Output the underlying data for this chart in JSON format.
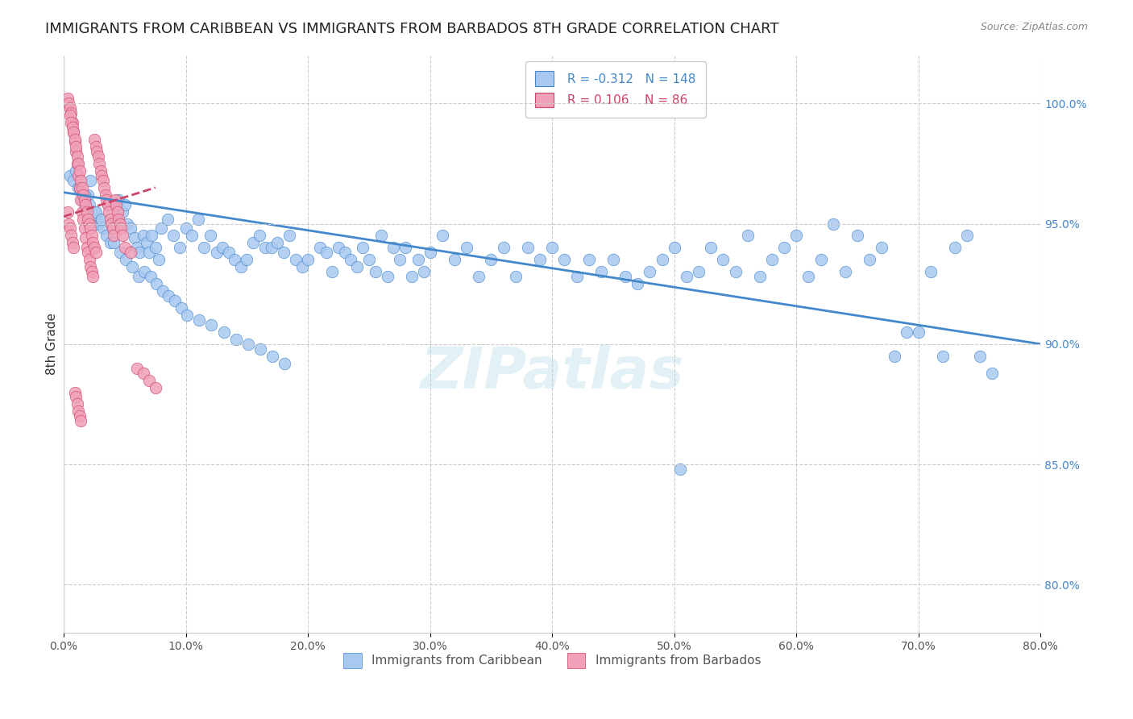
{
  "title": "IMMIGRANTS FROM CARIBBEAN VS IMMIGRANTS FROM BARBADOS 8TH GRADE CORRELATION CHART",
  "source": "Source: ZipAtlas.com",
  "ylabel": "8th Grade",
  "right_ytick_labels": [
    "100.0%",
    "95.0%",
    "90.0%",
    "85.0%",
    "80.0%"
  ],
  "right_ytick_vals": [
    1.0,
    0.95,
    0.9,
    0.85,
    0.8
  ],
  "xlim": [
    0.0,
    0.8
  ],
  "ylim": [
    0.78,
    1.02
  ],
  "xticklabels": [
    "0.0%",
    "10.0%",
    "20.0%",
    "30.0%",
    "40.0%",
    "50.0%",
    "60.0%",
    "70.0%",
    "80.0%"
  ],
  "xtick_vals": [
    0.0,
    0.1,
    0.2,
    0.3,
    0.4,
    0.5,
    0.6,
    0.7,
    0.8
  ],
  "legend_R1": "-0.312",
  "legend_N1": "148",
  "legend_R2": "0.106",
  "legend_N2": "86",
  "blue_color": "#A8C8F0",
  "pink_color": "#F0A0B8",
  "blue_line_color": "#4488CC",
  "pink_line_color": "#CC4466",
  "legend_label1": "Immigrants from Caribbean",
  "legend_label2": "Immigrants from Barbados",
  "watermark": "ZIPatlas",
  "blue_dots_x": [
    0.005,
    0.008,
    0.01,
    0.012,
    0.015,
    0.018,
    0.02,
    0.022,
    0.025,
    0.028,
    0.03,
    0.032,
    0.035,
    0.038,
    0.04,
    0.042,
    0.045,
    0.048,
    0.05,
    0.052,
    0.055,
    0.058,
    0.06,
    0.062,
    0.065,
    0.068,
    0.07,
    0.072,
    0.075,
    0.078,
    0.08,
    0.085,
    0.09,
    0.095,
    0.1,
    0.105,
    0.11,
    0.115,
    0.12,
    0.125,
    0.13,
    0.135,
    0.14,
    0.145,
    0.15,
    0.155,
    0.16,
    0.165,
    0.17,
    0.175,
    0.18,
    0.185,
    0.19,
    0.195,
    0.2,
    0.21,
    0.215,
    0.22,
    0.225,
    0.23,
    0.235,
    0.24,
    0.245,
    0.25,
    0.255,
    0.26,
    0.265,
    0.27,
    0.275,
    0.28,
    0.285,
    0.29,
    0.295,
    0.3,
    0.31,
    0.32,
    0.33,
    0.34,
    0.35,
    0.36,
    0.37,
    0.38,
    0.39,
    0.4,
    0.41,
    0.42,
    0.43,
    0.44,
    0.45,
    0.46,
    0.47,
    0.48,
    0.49,
    0.5,
    0.51,
    0.52,
    0.53,
    0.54,
    0.55,
    0.56,
    0.57,
    0.58,
    0.59,
    0.6,
    0.61,
    0.62,
    0.63,
    0.64,
    0.65,
    0.66,
    0.67,
    0.68,
    0.69,
    0.7,
    0.71,
    0.72,
    0.73,
    0.74,
    0.75,
    0.76,
    0.013,
    0.017,
    0.021,
    0.026,
    0.031,
    0.036,
    0.041,
    0.046,
    0.051,
    0.056,
    0.061,
    0.066,
    0.071,
    0.076,
    0.081,
    0.086,
    0.091,
    0.096,
    0.101,
    0.111,
    0.121,
    0.131,
    0.141,
    0.151,
    0.161,
    0.171,
    0.181,
    0.505
  ],
  "blue_dots_y": [
    0.97,
    0.968,
    0.972,
    0.965,
    0.96,
    0.958,
    0.962,
    0.968,
    0.955,
    0.95,
    0.952,
    0.948,
    0.945,
    0.942,
    0.948,
    0.952,
    0.96,
    0.955,
    0.958,
    0.95,
    0.948,
    0.944,
    0.94,
    0.938,
    0.945,
    0.942,
    0.938,
    0.945,
    0.94,
    0.935,
    0.948,
    0.952,
    0.945,
    0.94,
    0.948,
    0.945,
    0.952,
    0.94,
    0.945,
    0.938,
    0.94,
    0.938,
    0.935,
    0.932,
    0.935,
    0.942,
    0.945,
    0.94,
    0.94,
    0.942,
    0.938,
    0.945,
    0.935,
    0.932,
    0.935,
    0.94,
    0.938,
    0.93,
    0.94,
    0.938,
    0.935,
    0.932,
    0.94,
    0.935,
    0.93,
    0.945,
    0.928,
    0.94,
    0.935,
    0.94,
    0.928,
    0.935,
    0.93,
    0.938,
    0.945,
    0.935,
    0.94,
    0.928,
    0.935,
    0.94,
    0.928,
    0.94,
    0.935,
    0.94,
    0.935,
    0.928,
    0.935,
    0.93,
    0.935,
    0.928,
    0.925,
    0.93,
    0.935,
    0.94,
    0.928,
    0.93,
    0.94,
    0.935,
    0.93,
    0.945,
    0.928,
    0.935,
    0.94,
    0.945,
    0.928,
    0.935,
    0.95,
    0.93,
    0.945,
    0.935,
    0.94,
    0.895,
    0.905,
    0.905,
    0.93,
    0.895,
    0.94,
    0.945,
    0.895,
    0.888,
    0.965,
    0.962,
    0.958,
    0.955,
    0.952,
    0.958,
    0.942,
    0.938,
    0.935,
    0.932,
    0.928,
    0.93,
    0.928,
    0.925,
    0.922,
    0.92,
    0.918,
    0.915,
    0.912,
    0.91,
    0.908,
    0.905,
    0.902,
    0.9,
    0.898,
    0.895,
    0.892,
    0.848
  ],
  "pink_dots_x": [
    0.003,
    0.004,
    0.005,
    0.006,
    0.007,
    0.008,
    0.009,
    0.01,
    0.011,
    0.012,
    0.013,
    0.014,
    0.015,
    0.016,
    0.017,
    0.018,
    0.019,
    0.02,
    0.021,
    0.022,
    0.023,
    0.024,
    0.025,
    0.026,
    0.027,
    0.028,
    0.029,
    0.03,
    0.031,
    0.032,
    0.033,
    0.034,
    0.035,
    0.036,
    0.037,
    0.038,
    0.039,
    0.04,
    0.041,
    0.042,
    0.043,
    0.044,
    0.045,
    0.046,
    0.047,
    0.048,
    0.05,
    0.055,
    0.06,
    0.065,
    0.07,
    0.075,
    0.005,
    0.006,
    0.007,
    0.008,
    0.009,
    0.01,
    0.011,
    0.012,
    0.013,
    0.014,
    0.015,
    0.016,
    0.017,
    0.018,
    0.019,
    0.02,
    0.021,
    0.022,
    0.023,
    0.024,
    0.025,
    0.026,
    0.003,
    0.004,
    0.005,
    0.006,
    0.007,
    0.008,
    0.009,
    0.01,
    0.011,
    0.012,
    0.013,
    0.014
  ],
  "pink_dots_y": [
    1.002,
    1.0,
    0.998,
    0.996,
    0.992,
    0.988,
    0.984,
    0.98,
    0.975,
    0.97,
    0.965,
    0.96,
    0.955,
    0.952,
    0.948,
    0.944,
    0.94,
    0.938,
    0.935,
    0.932,
    0.93,
    0.928,
    0.985,
    0.982,
    0.98,
    0.978,
    0.975,
    0.972,
    0.97,
    0.968,
    0.965,
    0.962,
    0.96,
    0.958,
    0.955,
    0.952,
    0.95,
    0.948,
    0.945,
    0.96,
    0.958,
    0.955,
    0.952,
    0.95,
    0.948,
    0.945,
    0.94,
    0.938,
    0.89,
    0.888,
    0.885,
    0.882,
    0.995,
    0.992,
    0.99,
    0.988,
    0.985,
    0.982,
    0.978,
    0.975,
    0.972,
    0.968,
    0.965,
    0.962,
    0.96,
    0.958,
    0.955,
    0.952,
    0.95,
    0.948,
    0.945,
    0.942,
    0.94,
    0.938,
    0.955,
    0.95,
    0.948,
    0.945,
    0.942,
    0.94,
    0.88,
    0.878,
    0.875,
    0.872,
    0.87,
    0.868
  ],
  "blue_trendline_x": [
    0.0,
    0.8
  ],
  "blue_trendline_y": [
    0.963,
    0.9
  ],
  "pink_trendline_x": [
    0.0,
    0.075
  ],
  "pink_trendline_y": [
    0.953,
    0.965
  ]
}
